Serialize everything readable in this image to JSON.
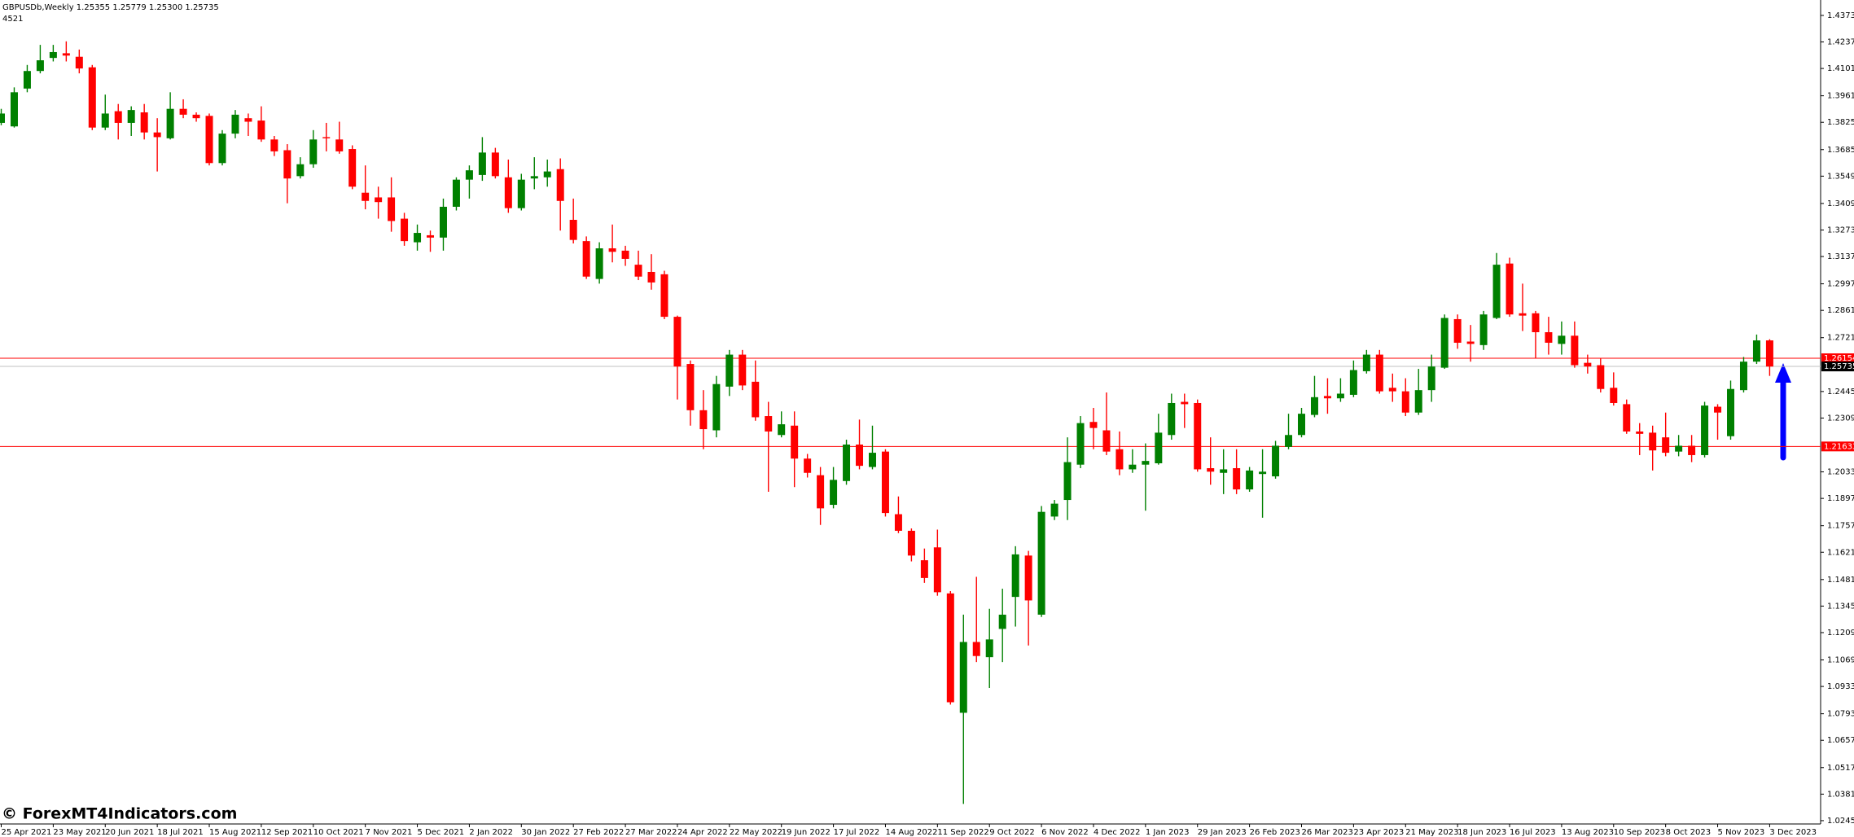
{
  "chart_data": {
    "type": "candlestick",
    "title": "GBPUSDb,Weekly  1.25355 1.25779 1.25300 1.25735",
    "subtitle": "4521",
    "watermark": "© ForexMT4Indicators.com",
    "up_color": "#008000",
    "down_color": "#ff0000",
    "ylim": [
      1.0228,
      1.4452
    ],
    "yticks": [
      {
        "value": 1.4373,
        "label": "1.43730"
      },
      {
        "value": 1.4237,
        "label": "1.42370"
      },
      {
        "value": 1.4101,
        "label": "1.41010"
      },
      {
        "value": 1.3961,
        "label": "1.39610"
      },
      {
        "value": 1.3825,
        "label": "1.38250"
      },
      {
        "value": 1.3685,
        "label": "1.36850"
      },
      {
        "value": 1.3549,
        "label": "1.35490"
      },
      {
        "value": 1.3409,
        "label": "1.34090"
      },
      {
        "value": 1.3273,
        "label": "1.32730"
      },
      {
        "value": 1.3137,
        "label": "1.31370"
      },
      {
        "value": 1.2997,
        "label": "1.29970"
      },
      {
        "value": 1.2861,
        "label": "1.28610"
      },
      {
        "value": 1.2721,
        "label": "1.27210"
      },
      {
        "value": 1.2445,
        "label": "1.24450"
      },
      {
        "value": 1.2309,
        "label": "1.23090"
      },
      {
        "value": 1.2033,
        "label": "1.20330"
      },
      {
        "value": 1.1897,
        "label": "1.18970"
      },
      {
        "value": 1.1757,
        "label": "1.17570"
      },
      {
        "value": 1.1621,
        "label": "1.16210"
      },
      {
        "value": 1.1481,
        "label": "1.14810"
      },
      {
        "value": 1.1345,
        "label": "1.13450"
      },
      {
        "value": 1.1209,
        "label": "1.12090"
      },
      {
        "value": 1.1069,
        "label": "1.10690"
      },
      {
        "value": 1.0933,
        "label": "1.09330"
      },
      {
        "value": 1.0793,
        "label": "1.07930"
      },
      {
        "value": 1.0657,
        "label": "1.06570"
      },
      {
        "value": 1.0517,
        "label": "1.05170"
      },
      {
        "value": 1.0381,
        "label": "1.03810"
      },
      {
        "value": 1.0245,
        "label": "1.02450"
      }
    ],
    "hlines": [
      {
        "value": 1.26154,
        "color": "#ff0000",
        "label_bg": "#ff0000"
      },
      {
        "value": 1.25735,
        "color": "#c0c0c0",
        "label_bg": "#000000"
      },
      {
        "value": 1.21633,
        "color": "#ff0000",
        "label_bg": "#ff0000"
      }
    ],
    "categories": [
      "25 Apr 2021",
      null,
      null,
      null,
      "23 May 2021",
      null,
      null,
      null,
      "20 Jun 2021",
      null,
      null,
      null,
      "18 Jul 2021",
      null,
      null,
      null,
      "15 Aug 2021",
      null,
      null,
      null,
      "12 Sep 2021",
      null,
      null,
      null,
      "10 Oct 2021",
      null,
      null,
      null,
      "7 Nov 2021",
      null,
      null,
      null,
      "5 Dec 2021",
      null,
      null,
      null,
      "2 Jan 2022",
      null,
      null,
      null,
      "30 Jan 2022",
      null,
      null,
      null,
      "27 Feb 2022",
      null,
      null,
      null,
      "27 Mar 2022",
      null,
      null,
      null,
      "24 Apr 2022",
      null,
      null,
      null,
      "22 May 2022",
      null,
      null,
      null,
      "19 Jun 2022",
      null,
      null,
      null,
      "17 Jul 2022",
      null,
      null,
      null,
      "14 Aug 2022",
      null,
      null,
      null,
      "11 Sep 2022",
      null,
      null,
      null,
      "9 Oct 2022",
      null,
      null,
      null,
      "6 Nov 2022",
      null,
      null,
      null,
      "4 Dec 2022",
      null,
      null,
      null,
      "1 Jan 2023",
      null,
      null,
      null,
      "29 Jan 2023",
      null,
      null,
      null,
      "26 Feb 2023",
      null,
      null,
      null,
      "26 Mar 2023",
      null,
      null,
      null,
      "23 Apr 2023",
      null,
      null,
      null,
      "21 May 2023",
      null,
      null,
      null,
      "18 Jun 2023",
      null,
      null,
      null,
      "16 Jul 2023",
      null,
      null,
      null,
      "13 Aug 2023",
      null,
      null,
      null,
      "10 Sep 2023",
      null,
      null,
      null,
      "8 Oct 2023",
      null,
      null,
      null,
      "5 Nov 2023",
      null,
      null,
      null,
      "3 Dec 2023"
    ],
    "open": [
      1.3822,
      1.3804,
      1.3998,
      1.4088,
      1.4155,
      1.4179,
      1.4161,
      1.4107,
      1.3798,
      1.3882,
      1.3822,
      1.3876,
      1.3773,
      1.3743,
      1.3894,
      1.3864,
      1.3858,
      1.3616,
      1.3767,
      1.3846,
      1.3834,
      1.3737,
      1.3682,
      1.3549,
      1.361,
      1.3749,
      1.3737,
      1.3688,
      1.3464,
      1.344,
      1.344,
      1.3331,
      1.321,
      1.3246,
      1.3234,
      1.3392,
      1.3531,
      1.3555,
      1.367,
      1.3543,
      1.3385,
      1.3537,
      1.3543,
      1.3585,
      1.3325,
      1.3216,
      1.3022,
      1.3179,
      1.3167,
      1.3095,
      1.3058,
      1.3046,
      1.2828,
      1.2586,
      1.2349,
      1.2246,
      1.247,
      1.2634,
      1.2495,
      1.2319,
      1.2222,
      1.227,
      1.2101,
      1.2016,
      1.1864,
      1.1986,
      1.2173,
      1.2058,
      1.2137,
      1.1816,
      1.1731,
      1.158,
      1.1646,
      1.141,
      1.0798,
      1.1161,
      1.1083,
      1.1228,
      1.1392,
      1.1604,
      1.1301,
      1.1804,
      1.1889,
      1.207,
      1.2289,
      1.2246,
      1.2149,
      1.2046,
      1.207,
      1.2077,
      1.2222,
      1.2392,
      1.2386,
      1.2052,
      1.2028,
      1.2052,
      1.1943,
      1.2022,
      1.201,
      1.2161,
      1.2222,
      1.2325,
      1.2422,
      1.241,
      1.2428,
      1.2549,
      1.2634,
      1.2464,
      1.2446,
      1.2337,
      1.2452,
      1.2567,
      1.2816,
      1.2701,
      1.2683,
      1.2822,
      1.3101,
      1.2846,
      1.2846,
      1.2749,
      1.2689,
      1.2731,
      1.2592,
      1.258,
      1.2464,
      1.238,
      1.224,
      1.2234,
      1.221,
      1.2137,
      1.2167,
      1.2119,
      1.2367,
      1.2216,
      1.2452,
      1.2598,
      1.2707
    ],
    "high": [
      1.3894,
      1.4004,
      1.4119,
      1.4222,
      1.4222,
      1.424,
      1.4198,
      1.4119,
      1.3967,
      1.3919,
      1.3907,
      1.3919,
      1.3846,
      1.3979,
      1.3943,
      1.3876,
      1.387,
      1.3785,
      1.3888,
      1.387,
      1.3907,
      1.3755,
      1.3713,
      1.3646,
      1.3785,
      1.3822,
      1.3828,
      1.3707,
      1.3604,
      1.3495,
      1.3543,
      1.3361,
      1.3301,
      1.327,
      1.3434,
      1.3543,
      1.3604,
      1.3749,
      1.3694,
      1.3634,
      1.3561,
      1.3646,
      1.3634,
      1.364,
      1.3434,
      1.324,
      1.321,
      1.3301,
      1.3192,
      1.3167,
      1.3149,
      1.3064,
      1.2834,
      1.2604,
      1.2452,
      1.2525,
      1.2658,
      1.2658,
      1.2604,
      1.2392,
      1.2343,
      1.2343,
      1.2125,
      1.2058,
      1.2058,
      1.2198,
      1.2301,
      1.227,
      1.2149,
      1.1907,
      1.1743,
      1.164,
      1.1737,
      1.1422,
      1.1301,
      1.1495,
      1.1331,
      1.1434,
      1.1652,
      1.1628,
      1.1858,
      1.1889,
      1.221,
      1.2319,
      1.2361,
      1.244,
      1.224,
      1.2149,
      1.2179,
      1.2331,
      1.2434,
      1.2434,
      1.2404,
      1.221,
      1.2149,
      1.2149,
      1.2058,
      1.2149,
      1.2192,
      1.2331,
      1.2361,
      1.2525,
      1.2513,
      1.2513,
      1.2604,
      1.2658,
      1.2658,
      1.2537,
      1.2513,
      1.2561,
      1.2634,
      1.284,
      1.284,
      1.2786,
      1.2858,
      1.3155,
      1.3131,
      1.2998,
      1.2858,
      1.2828,
      1.2804,
      1.2804,
      1.2634,
      1.2616,
      1.2543,
      1.2404,
      1.2283,
      1.227,
      1.2337,
      1.2222,
      1.2222,
      1.2392,
      1.238,
      1.2501,
      1.2622,
      1.2737,
      1.2713
    ],
    "low": [
      1.381,
      1.3798,
      1.3979,
      1.4076,
      1.4137,
      1.4137,
      1.4076,
      1.3785,
      1.3785,
      1.3737,
      1.3755,
      1.3737,
      1.3573,
      1.3737,
      1.3846,
      1.3828,
      1.3604,
      1.3604,
      1.3743,
      1.3755,
      1.3725,
      1.3652,
      1.341,
      1.3537,
      1.3592,
      1.3676,
      1.3664,
      1.3482,
      1.3379,
      1.3331,
      1.3264,
      1.3192,
      1.3167,
      1.3161,
      1.3167,
      1.3373,
      1.3434,
      1.3525,
      1.3537,
      1.3361,
      1.3373,
      1.3482,
      1.3495,
      1.327,
      1.3204,
      1.3022,
      1.2998,
      1.3107,
      1.3089,
      1.3016,
      1.2967,
      1.2816,
      1.2404,
      1.227,
      1.2149,
      1.221,
      1.2422,
      1.2452,
      1.2295,
      1.1931,
      1.221,
      1.1955,
      1.2004,
      1.1761,
      1.1846,
      1.1967,
      1.2046,
      1.2046,
      1.1804,
      1.1719,
      1.1574,
      1.1464,
      1.1398,
      1.084,
      1.0331,
      1.1058,
      1.0925,
      1.1058,
      1.124,
      1.1143,
      1.1289,
      1.1786,
      1.1786,
      1.2052,
      1.2149,
      1.2119,
      1.2016,
      1.2028,
      1.1834,
      1.207,
      1.2198,
      1.2258,
      1.2034,
      1.1967,
      1.1919,
      1.1919,
      1.1931,
      1.1798,
      1.1998,
      1.2149,
      1.221,
      1.2313,
      1.2331,
      1.2392,
      1.2416,
      1.2537,
      1.2434,
      1.2392,
      1.2319,
      1.2325,
      1.2392,
      1.2561,
      1.2664,
      1.2598,
      1.2658,
      1.2816,
      1.2828,
      1.2755,
      1.2616,
      1.2634,
      1.2634,
      1.2567,
      1.2537,
      1.244,
      1.2373,
      1.2228,
      1.2119,
      1.204,
      1.2113,
      1.2113,
      1.2083,
      1.2107,
      1.2198,
      1.2198,
      1.244,
      1.2586,
      1.2525
    ],
    "close": [
      1.387,
      1.3979,
      1.4088,
      1.4143,
      1.4185,
      1.4167,
      1.4101,
      1.3798,
      1.387,
      1.3822,
      1.3888,
      1.3773,
      1.3749,
      1.3894,
      1.3864,
      1.3846,
      1.3616,
      1.3767,
      1.3864,
      1.3828,
      1.3737,
      1.3676,
      1.3537,
      1.361,
      1.3737,
      1.3743,
      1.3676,
      1.3495,
      1.3422,
      1.3416,
      1.3319,
      1.3216,
      1.3258,
      1.3234,
      1.3392,
      1.3531,
      1.3579,
      1.367,
      1.3549,
      1.3385,
      1.3531,
      1.3549,
      1.3573,
      1.3422,
      1.3222,
      1.3034,
      1.3179,
      1.3161,
      1.3125,
      1.3034,
      1.3004,
      1.2828,
      1.2573,
      1.2349,
      1.2252,
      1.2483,
      1.2634,
      1.2476,
      1.2313,
      1.224,
      1.2277,
      1.2101,
      1.2028,
      1.1846,
      1.1992,
      1.2173,
      1.2064,
      1.2131,
      1.1822,
      1.1731,
      1.1604,
      1.1489,
      1.1416,
      1.0852,
      1.1161,
      1.1089,
      1.1174,
      1.1301,
      1.161,
      1.1374,
      1.1828,
      1.187,
      1.2083,
      1.2283,
      1.2258,
      1.2137,
      1.2046,
      1.207,
      1.2089,
      1.2234,
      1.2386,
      1.238,
      1.2046,
      1.2034,
      1.2046,
      1.1943,
      1.204,
      1.2034,
      1.2167,
      1.2222,
      1.2331,
      1.2416,
      1.241,
      1.2434,
      1.2555,
      1.2634,
      1.2446,
      1.2446,
      1.2337,
      1.2452,
      1.2573,
      1.2822,
      1.2695,
      1.2689,
      1.284,
      1.3095,
      1.284,
      1.2834,
      1.2749,
      1.2695,
      1.2731,
      1.258,
      1.2573,
      1.2458,
      1.2386,
      1.224,
      1.2228,
      1.2143,
      1.2131,
      1.2167,
      1.2119,
      1.2373,
      1.2337,
      1.2458,
      1.2598,
      1.2707,
      1.2573
    ]
  }
}
